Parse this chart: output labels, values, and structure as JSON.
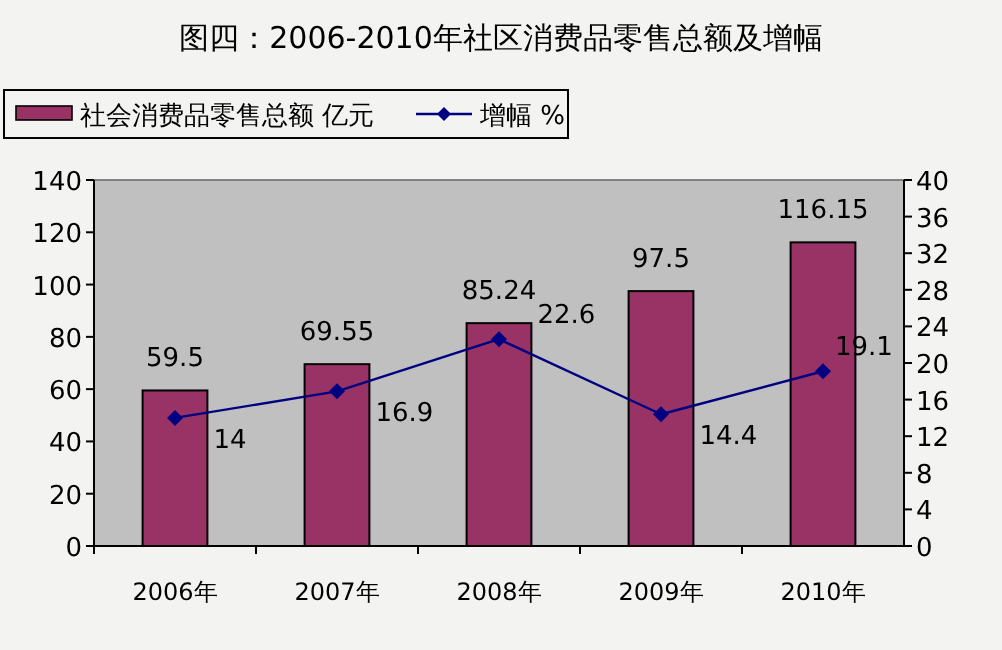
{
  "chart_data": {
    "type": "bar",
    "title": "图四：2006-2010年社区消费品零售总额及增幅",
    "categories": [
      "2006年",
      "2007年",
      "2008年",
      "2009年",
      "2010年"
    ],
    "series": [
      {
        "name": "社会消费品零售总额  亿元",
        "color": "#993366",
        "values": [
          59.5,
          69.55,
          85.24,
          97.5,
          116.15
        ]
      },
      {
        "name": "增幅  %",
        "type": "line",
        "axis": "y2",
        "color": "#000080",
        "values": [
          14,
          16.9,
          22.6,
          14.4,
          19.1
        ]
      }
    ],
    "ylim": [
      0,
      140
    ],
    "yticks": [
      0,
      20,
      40,
      60,
      80,
      100,
      120,
      140
    ],
    "y2lim": [
      0,
      40
    ],
    "y2ticks": [
      0,
      4,
      8,
      12,
      16,
      20,
      24,
      28,
      32,
      36,
      40
    ],
    "data_labels": true,
    "grid": false,
    "legend": "top left",
    "marker": "diamond"
  }
}
